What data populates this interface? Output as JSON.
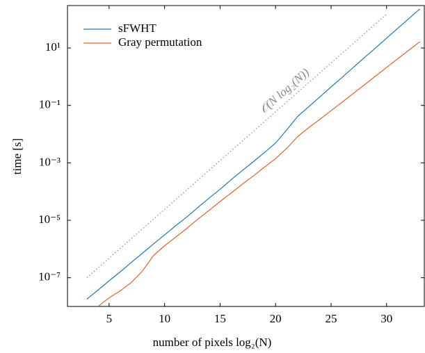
{
  "chart_data": {
    "type": "line",
    "xlabel": "number of pixels log₂(N)",
    "ylabel": "time [s]",
    "xlim": [
      1.25,
      33.4
    ],
    "xticks": [
      5,
      10,
      15,
      20,
      25,
      30
    ],
    "ylim": [
      1e-08,
      300
    ],
    "log_y": true,
    "yticks": [
      {
        "value": 1e-07,
        "label": "10⁻⁷"
      },
      {
        "value": 1e-05,
        "label": "10⁻⁵"
      },
      {
        "value": 0.001,
        "label": "10⁻³"
      },
      {
        "value": 0.1,
        "label": "10⁻¹"
      },
      {
        "value": 10,
        "label": "10¹"
      }
    ],
    "legend": "upper left",
    "series": [
      {
        "name": "sFWHT",
        "color": "#1f77b4",
        "x": [
          3,
          4,
          5,
          6,
          7,
          8,
          9,
          10,
          11,
          12,
          13,
          14,
          15,
          16,
          17,
          18,
          19,
          20,
          21,
          22,
          23,
          24,
          25,
          26,
          27,
          28,
          29,
          30,
          31,
          32,
          33
        ],
        "values": [
          1.8e-08,
          3.7e-08,
          7.8e-08,
          1.6e-07,
          3.4e-07,
          7.1e-07,
          1.5e-06,
          3.1e-06,
          6.5e-06,
          1.3e-05,
          2.8e-05,
          5.9e-05,
          0.00012,
          0.00026,
          0.00054,
          0.0011,
          0.0023,
          0.0049,
          0.014,
          0.042,
          0.091,
          0.2,
          0.44,
          0.95,
          2.1,
          4.6,
          10,
          22,
          48,
          105,
          229
        ]
      },
      {
        "name": "Gray permutation",
        "color": "#e8602c",
        "x": [
          4,
          5,
          6,
          7,
          8,
          9,
          10,
          11,
          12,
          13,
          14,
          15,
          16,
          17,
          18,
          19,
          20,
          21,
          22,
          23,
          24,
          25,
          26,
          27,
          28,
          29,
          30,
          31,
          32,
          33
        ],
        "values": [
          1e-08,
          2e-08,
          3.5e-08,
          6.8e-08,
          1.7e-07,
          5.9e-07,
          1.3e-06,
          2.6e-06,
          5.2e-06,
          1.1e-05,
          2.2e-05,
          4.5e-05,
          8.9e-05,
          0.00018,
          0.00035,
          0.00071,
          0.0014,
          0.0032,
          0.0083,
          0.017,
          0.033,
          0.066,
          0.13,
          0.26,
          0.52,
          1.05,
          2.1,
          4.2,
          8.3,
          16.6
        ]
      }
    ],
    "reference": {
      "label": "𝒪(N log₂(N))",
      "color": "#888888",
      "x": [
        3,
        30
      ],
      "values": [
        1e-07,
        150
      ]
    }
  }
}
